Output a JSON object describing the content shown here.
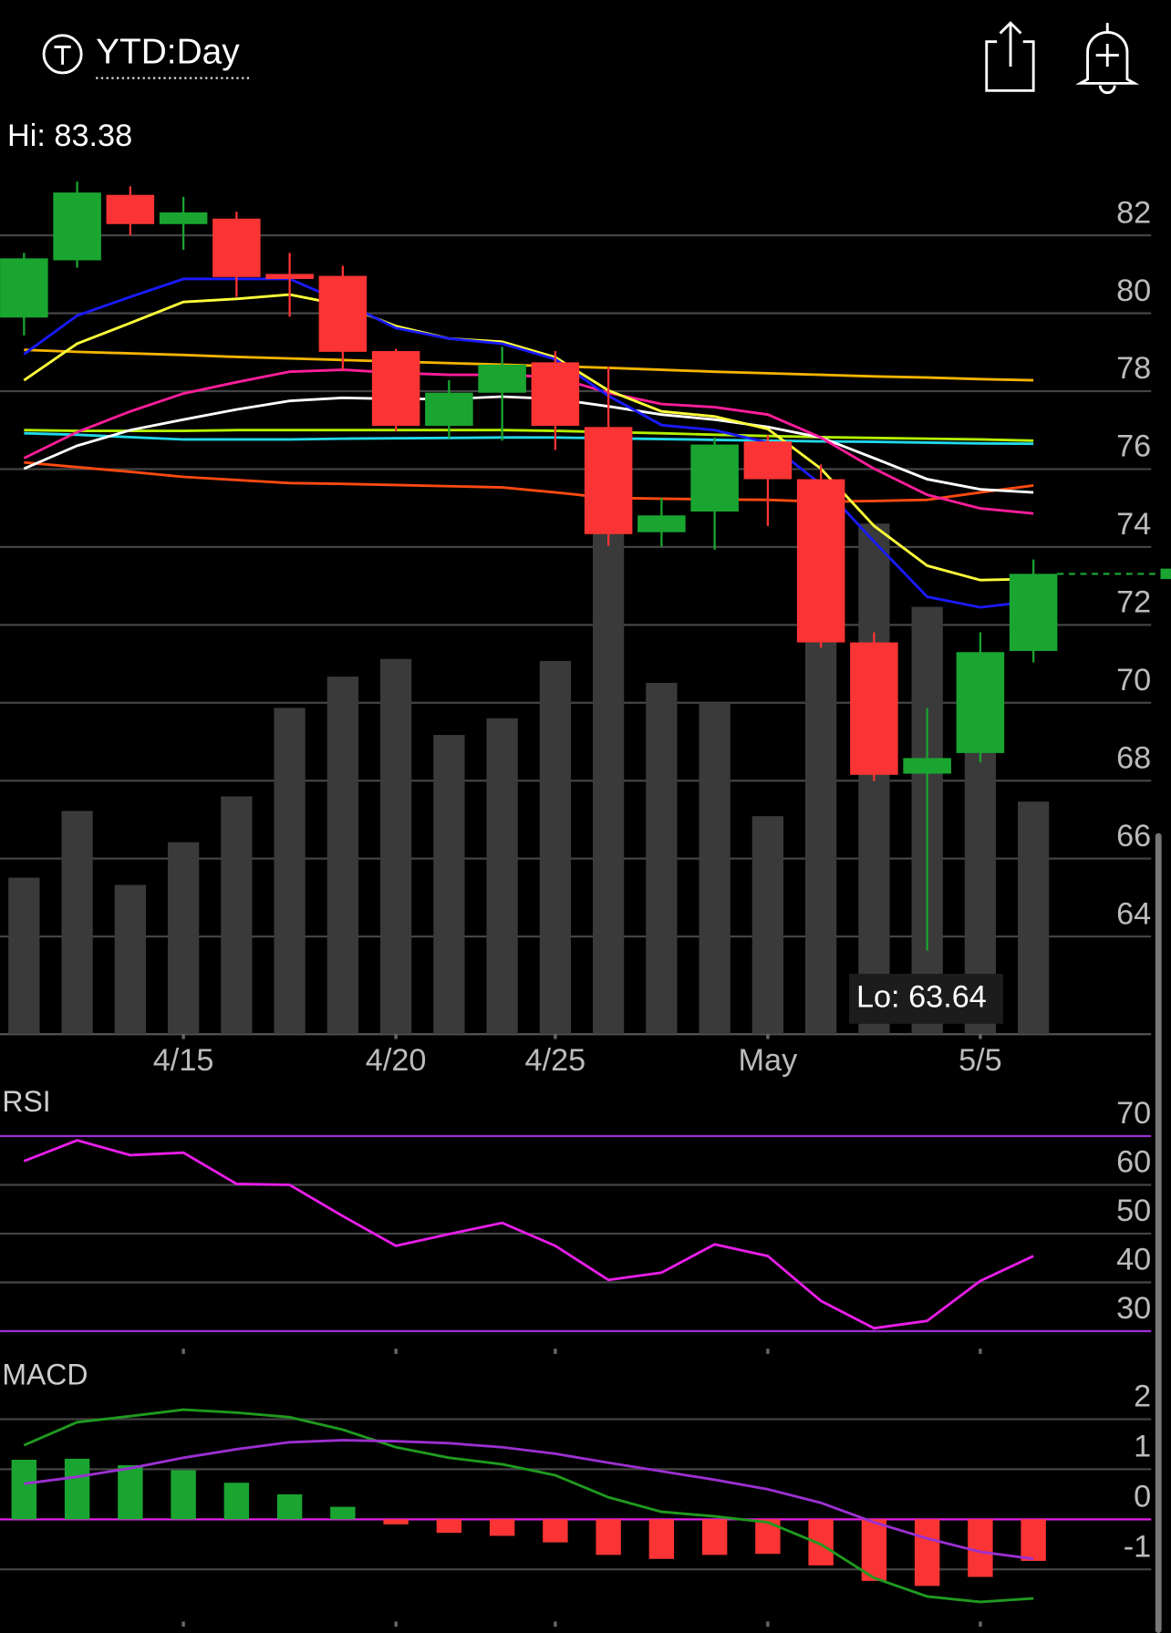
{
  "header": {
    "title": "YTD:Day"
  },
  "chart_data": [
    {
      "type": "candlestick",
      "categories": [
        null,
        null,
        null,
        "4/15",
        null,
        null,
        null,
        "4/20",
        null,
        null,
        "4/25",
        null,
        null,
        null,
        "May",
        null,
        null,
        null,
        "5/5",
        null
      ],
      "open": [
        79.89,
        81.36,
        83.04,
        82.29,
        82.43,
        81.01,
        80.96,
        79.03,
        77.11,
        77.96,
        78.74,
        77.08,
        74.38,
        74.91,
        76.71,
        75.74,
        71.55,
        68.18,
        68.71,
        71.33
      ],
      "high": [
        81.55,
        83.38,
        83.26,
        82.99,
        82.61,
        81.55,
        81.22,
        79.09,
        78.28,
        79.14,
        79.03,
        78.63,
        75.26,
        76.81,
        76.87,
        76.12,
        71.81,
        69.86,
        71.81,
        73.68
      ],
      "low": [
        79.43,
        81.17,
        82.0,
        81.63,
        80.42,
        79.91,
        78.55,
        76.97,
        76.79,
        76.73,
        76.49,
        74.03,
        74.01,
        73.93,
        74.54,
        71.41,
        67.99,
        63.64,
        68.47,
        71.04
      ],
      "close": [
        81.41,
        83.1,
        82.29,
        82.59,
        80.93,
        80.88,
        79.01,
        77.11,
        77.96,
        78.68,
        77.11,
        74.33,
        74.81,
        76.63,
        75.74,
        71.55,
        68.15,
        68.58,
        71.3,
        73.31
      ],
      "volume": [
        150,
        214,
        143,
        184,
        228,
        313,
        343,
        360,
        287,
        303,
        358,
        493,
        337,
        318,
        209,
        388,
        490,
        410,
        343,
        223
      ],
      "volume_ylim": [
        0,
        520
      ],
      "up_color": "#1aa531",
      "down_color": "#fa3434",
      "volume_color": "#3a3a3a",
      "ylim": [
        61.5,
        84
      ],
      "yticks": [
        64,
        66,
        68,
        70,
        72,
        74,
        76,
        78,
        80,
        82
      ],
      "grid": true,
      "series": [
        {
          "color": "#f5b400",
          "values": [
            79.06,
            79.01,
            78.97,
            78.93,
            78.88,
            78.84,
            78.8,
            78.76,
            78.72,
            78.68,
            78.64,
            78.6,
            78.55,
            78.5,
            78.46,
            78.42,
            78.38,
            78.35,
            78.31,
            78.28
          ]
        },
        {
          "color": "#b4f000",
          "values": [
            77.0,
            76.98,
            76.98,
            76.98,
            77.0,
            77.0,
            77.0,
            77.0,
            77.0,
            77.0,
            76.98,
            76.95,
            76.92,
            76.88,
            76.85,
            76.82,
            76.8,
            76.78,
            76.76,
            76.73
          ]
        },
        {
          "color": "#22d8e8",
          "values": [
            76.92,
            76.88,
            76.82,
            76.76,
            76.76,
            76.76,
            76.78,
            76.79,
            76.8,
            76.81,
            76.81,
            76.79,
            76.77,
            76.75,
            76.73,
            76.71,
            76.7,
            76.68,
            76.66,
            76.65
          ]
        },
        {
          "color": "#ff4a10",
          "values": [
            76.17,
            76.05,
            75.93,
            75.8,
            75.72,
            75.64,
            75.62,
            75.59,
            75.56,
            75.53,
            75.4,
            75.26,
            75.24,
            75.22,
            75.21,
            75.16,
            75.18,
            75.21,
            75.4,
            75.58
          ]
        },
        {
          "color": "#ffffff",
          "values": [
            76.01,
            76.6,
            77.0,
            77.27,
            77.53,
            77.75,
            77.83,
            77.8,
            77.8,
            77.86,
            77.8,
            77.61,
            77.4,
            77.27,
            77.08,
            76.81,
            76.28,
            75.74,
            75.48,
            75.4
          ]
        },
        {
          "color": "#ff1e9a",
          "values": [
            76.28,
            76.95,
            77.48,
            77.94,
            78.23,
            78.5,
            78.55,
            78.47,
            78.42,
            78.42,
            78.36,
            77.96,
            77.67,
            77.59,
            77.4,
            76.81,
            76.01,
            75.34,
            74.99,
            74.86
          ]
        },
        {
          "color": "#ffff3a",
          "values": [
            78.28,
            79.22,
            79.75,
            80.29,
            80.37,
            80.48,
            80.21,
            79.67,
            79.35,
            79.27,
            78.87,
            78.02,
            77.48,
            77.35,
            77.03,
            76.01,
            74.54,
            73.52,
            73.15,
            73.18
          ]
        },
        {
          "color": "#1a1aff",
          "values": [
            78.95,
            79.94,
            80.42,
            80.88,
            80.88,
            80.88,
            80.29,
            79.62,
            79.35,
            79.22,
            78.82,
            77.88,
            77.13,
            77.0,
            76.68,
            75.61,
            74.14,
            72.72,
            72.45,
            72.61
          ]
        }
      ],
      "annotations": [
        "Hi: 83.38",
        "Lo: 63.64"
      ]
    },
    {
      "type": "line",
      "title": "RSI",
      "values": [
        64.87,
        69.14,
        66.1,
        66.6,
        60.2,
        60.0,
        53.6,
        47.5,
        49.9,
        52.2,
        47.5,
        40.5,
        42.0,
        47.8,
        45.4,
        36.2,
        30.6,
        32.1,
        40.3,
        45.4
      ],
      "color": "#e81ee8",
      "band_color": "#9b30d0",
      "ylim": [
        26.4,
        79.8
      ],
      "yticks": [
        30,
        40,
        50,
        60,
        70
      ],
      "grid": true
    },
    {
      "type": "macd",
      "title": "MACD",
      "histogram": [
        1.19,
        1.21,
        1.08,
        0.98,
        0.73,
        0.5,
        0.25,
        -0.1,
        -0.27,
        -0.33,
        -0.46,
        -0.71,
        -0.79,
        -0.71,
        -0.69,
        -0.92,
        -1.23,
        -1.33,
        -1.15,
        -0.83
      ],
      "macd": [
        1.48,
        1.94,
        2.06,
        2.19,
        2.13,
        2.04,
        1.79,
        1.44,
        1.23,
        1.1,
        0.88,
        0.44,
        0.15,
        0.06,
        -0.06,
        -0.5,
        -1.17,
        -1.54,
        -1.65,
        -1.58
      ],
      "signal": [
        0.71,
        0.85,
        1.02,
        1.23,
        1.4,
        1.54,
        1.58,
        1.56,
        1.52,
        1.44,
        1.31,
        1.13,
        0.96,
        0.79,
        0.6,
        0.33,
        -0.06,
        -0.38,
        -0.65,
        -0.79
      ],
      "up_color": "#1aa531",
      "down_color": "#fa3434",
      "macd_color": "#1f9a1f",
      "signal_color": "#9b30d0",
      "zero_color": "#e81ee8",
      "ylim": [
        -2.27,
        3.2
      ],
      "yticks": [
        -1,
        0,
        1,
        2
      ],
      "grid": true
    }
  ]
}
